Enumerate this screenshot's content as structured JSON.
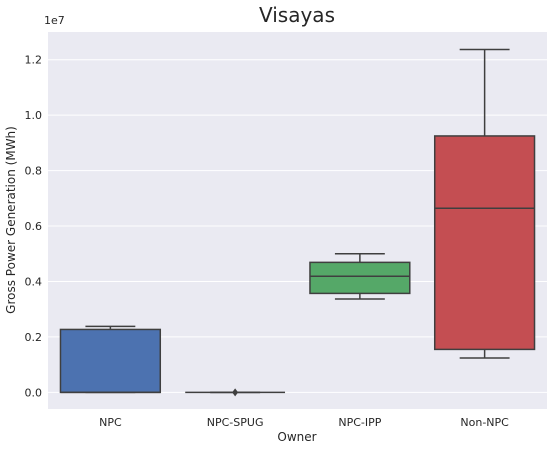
{
  "chart_data": {
    "type": "box",
    "title": "Visayas",
    "xlabel": "Owner",
    "ylabel": "Gross Power Generation (MWh)",
    "y_offset_text": "1e7",
    "y_scale_factor": 10000000,
    "ylim": [
      -0.06,
      1.3
    ],
    "y_ticks": [
      0.0,
      0.2,
      0.4,
      0.6,
      0.8,
      1.0,
      1.2
    ],
    "y_tick_labels": [
      "0.0",
      "0.2",
      "0.4",
      "0.6",
      "0.8",
      "1.0",
      "1.2"
    ],
    "grid": true,
    "categories": [
      "NPC",
      "NPC-SPUG",
      "NPC-IPP",
      "Non-NPC"
    ],
    "colors": [
      "#4c72b0",
      "#dd8452",
      "#55a868",
      "#c44e52"
    ],
    "boxes": [
      {
        "category": "NPC",
        "whisker_low": 0.0,
        "q1": 0.0,
        "median": 0.0,
        "q3": 0.227,
        "whisker_high": 0.238,
        "outliers": []
      },
      {
        "category": "NPC-SPUG",
        "whisker_low": 0.0,
        "q1": 0.0,
        "median": 0.0,
        "q3": 0.0,
        "whisker_high": 0.0,
        "outliers": [
          0.0
        ]
      },
      {
        "category": "NPC-IPP",
        "whisker_low": 0.337,
        "q1": 0.357,
        "median": 0.419,
        "q3": 0.469,
        "whisker_high": 0.5,
        "outliers": []
      },
      {
        "category": "Non-NPC",
        "whisker_low": 0.124,
        "q1": 0.155,
        "median": 0.664,
        "q3": 0.925,
        "whisker_high": 1.237,
        "outliers": []
      }
    ]
  }
}
